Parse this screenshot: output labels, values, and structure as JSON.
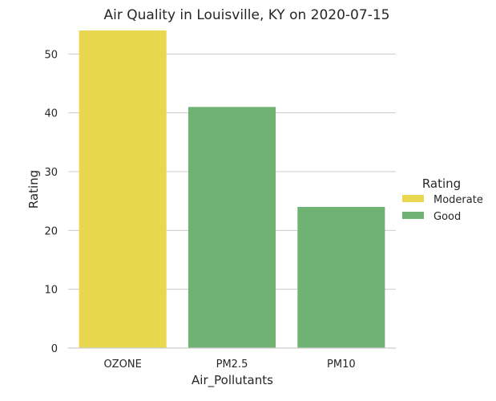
{
  "chart_data": {
    "type": "bar",
    "title": "Air Quality in Louisville, KY on 2020-07-15",
    "xlabel": "Air_Pollutants",
    "ylabel": "Rating",
    "categories": [
      "OZONE",
      "PM2.5",
      "PM10"
    ],
    "values": [
      54,
      41,
      24
    ],
    "bar_ratings": [
      "Moderate",
      "Good",
      "Good"
    ],
    "y_ticks": [
      0,
      10,
      20,
      30,
      40,
      50
    ],
    "ylim": [
      0,
      54
    ],
    "grid": "horizontal",
    "legend": {
      "title": "Rating",
      "placement": "right",
      "entries": [
        {
          "label": "Moderate",
          "color": "#e9d84f"
        },
        {
          "label": "Good",
          "color": "#70b274"
        }
      ]
    }
  }
}
